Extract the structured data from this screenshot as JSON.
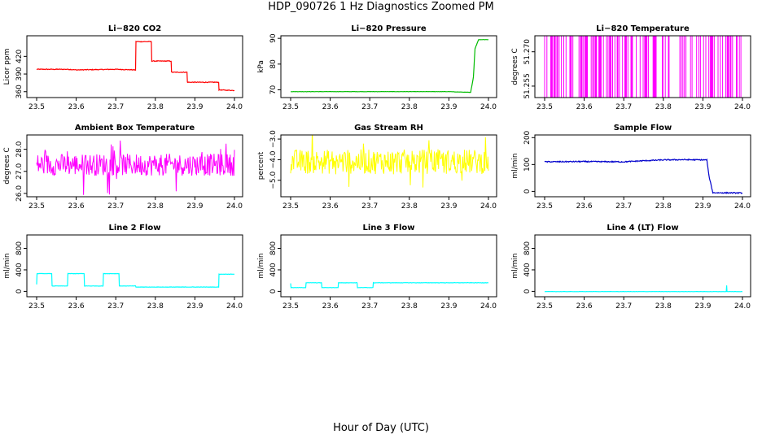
{
  "figure": {
    "title": "HDP_090726  1 Hz Diagnostics Zoomed PM",
    "xlabel": "Hour of Day (UTC)"
  },
  "chart_data": [
    {
      "id": "co2",
      "type": "line",
      "title": "Li−820 CO2",
      "ylabel": "Licor ppm",
      "color": "#ff0000",
      "noise": 0.6,
      "xlim": [
        23.5,
        24.0
      ],
      "ylim": [
        350,
        455
      ],
      "xticks": [
        "23.5",
        "23.6",
        "23.7",
        "23.8",
        "23.9",
        "24.0"
      ],
      "yticks": [
        {
          "v": 360,
          "label": "360"
        },
        {
          "v": 390,
          "label": "390"
        },
        {
          "v": 420,
          "label": "420"
        }
      ],
      "series": [
        {
          "name": "CO2",
          "x": [
            23.5,
            23.58,
            23.6,
            23.7,
            23.75,
            23.751,
            23.79,
            23.791,
            23.84,
            23.841,
            23.88,
            23.881,
            23.96,
            23.961,
            24.0
          ],
          "y": [
            398,
            398,
            397,
            398,
            397,
            445,
            445,
            412,
            412,
            393,
            393,
            376,
            376,
            363,
            362
          ]
        }
      ]
    },
    {
      "id": "pressure",
      "type": "line",
      "title": "Li−820 Pressure",
      "ylabel": "kPa",
      "color": "#00bb00",
      "noise": 0.05,
      "xlim": [
        23.5,
        24.0
      ],
      "ylim": [
        67,
        91
      ],
      "xticks": [
        "23.5",
        "23.6",
        "23.7",
        "23.8",
        "23.9",
        "24.0"
      ],
      "yticks": [
        {
          "v": 70,
          "label": "70"
        },
        {
          "v": 80,
          "label": "80"
        },
        {
          "v": 90,
          "label": "90"
        }
      ],
      "series": [
        {
          "name": "Pressure",
          "x": [
            23.5,
            23.9,
            23.955,
            23.962,
            23.966,
            23.975,
            24.0
          ],
          "y": [
            69.3,
            69.3,
            69.0,
            75,
            86,
            89.5,
            89.5
          ]
        }
      ]
    },
    {
      "id": "licor-temp",
      "type": "spikes",
      "title": "Li−820 Temperature",
      "ylabel": "degrees C",
      "color": "#ff00ff",
      "xlim": [
        23.5,
        24.0
      ],
      "ylim": [
        51.25,
        51.277
      ],
      "xticks": [
        "23.5",
        "23.6",
        "23.7",
        "23.8",
        "23.9",
        "24.0"
      ],
      "yticks": [
        {
          "v": 51.255,
          "label": "51.255"
        },
        {
          "v": 51.27,
          "label": "51.270"
        }
      ],
      "base": 51.25,
      "top": 51.277,
      "density_low": 0.35,
      "density_high": 0.55
    },
    {
      "id": "box-temp",
      "type": "noise",
      "title": "Ambient Box Temperature",
      "ylabel": "degrees C",
      "color": "#ff00ff",
      "xlim": [
        23.5,
        24.0
      ],
      "ylim": [
        25.85,
        28.65
      ],
      "xticks": [
        "23.5",
        "23.6",
        "23.7",
        "23.8",
        "23.9",
        "24.0"
      ],
      "yticks": [
        {
          "v": 26.0,
          "label": "26.0"
        },
        {
          "v": 27.0,
          "label": "27.0"
        },
        {
          "v": 28.0,
          "label": "28.0"
        }
      ],
      "mean": 27.3,
      "amp": 0.5,
      "spike": 0.6
    },
    {
      "id": "rh",
      "type": "noise",
      "title": "Gas Stream RH",
      "ylabel": "percent",
      "color": "#ffff00",
      "xlim": [
        23.5,
        24.0
      ],
      "ylim": [
        -5.8,
        -2.8
      ],
      "xticks": [
        "23.5",
        "23.6",
        "23.7",
        "23.8",
        "23.9",
        "24.0"
      ],
      "yticks": [
        {
          "v": -5.0,
          "label": "−5.0"
        },
        {
          "v": -4.0,
          "label": "−4.0"
        },
        {
          "v": -3.0,
          "label": "−3.0"
        }
      ],
      "mean": -4.1,
      "amp": 0.6,
      "spike": 0.7
    },
    {
      "id": "sample-flow",
      "type": "line",
      "title": "Sample Flow",
      "ylabel": "ml/min",
      "color": "#0000cc",
      "noise": 2,
      "xlim": [
        23.5,
        24.0
      ],
      "ylim": [
        -20,
        210
      ],
      "xticks": [
        "23.5",
        "23.6",
        "23.7",
        "23.8",
        "23.9",
        "24.0"
      ],
      "yticks": [
        {
          "v": 0,
          "label": "0"
        },
        {
          "v": 100,
          "label": "100"
        },
        {
          "v": 200,
          "label": "200"
        }
      ],
      "series": [
        {
          "name": "Sample Flow",
          "x": [
            23.5,
            23.6,
            23.7,
            23.75,
            23.8,
            23.85,
            23.91,
            23.915,
            23.925,
            24.0
          ],
          "y": [
            110,
            111,
            110,
            114,
            117,
            118,
            117,
            60,
            -5,
            -6
          ]
        }
      ]
    },
    {
      "id": "line2",
      "type": "line",
      "title": "Line 2 Flow",
      "ylabel": "ml/min",
      "color": "#00ffff",
      "noise": 3,
      "xlim": [
        23.5,
        24.0
      ],
      "ylim": [
        -100,
        1050
      ],
      "xticks": [
        "23.5",
        "23.6",
        "23.7",
        "23.8",
        "23.9",
        "24.0"
      ],
      "yticks": [
        {
          "v": 0,
          "label": "0"
        },
        {
          "v": 400,
          "label": "400"
        },
        {
          "v": 800,
          "label": "800"
        }
      ],
      "series": [
        {
          "name": "Line 2",
          "x": [
            23.5,
            23.501,
            23.538,
            23.539,
            23.578,
            23.579,
            23.62,
            23.621,
            23.668,
            23.669,
            23.708,
            23.709,
            23.75,
            23.751,
            23.96,
            23.961,
            24.0
          ],
          "y": [
            130,
            330,
            330,
            100,
            100,
            330,
            330,
            100,
            100,
            330,
            330,
            100,
            100,
            80,
            80,
            320,
            320
          ]
        }
      ]
    },
    {
      "id": "line3",
      "type": "line",
      "title": "Line 3 Flow",
      "ylabel": "ml/min",
      "color": "#00ffff",
      "noise": 3,
      "xlim": [
        23.5,
        24.0
      ],
      "ylim": [
        -100,
        1050
      ],
      "xticks": [
        "23.5",
        "23.6",
        "23.7",
        "23.8",
        "23.9",
        "24.0"
      ],
      "yticks": [
        {
          "v": 0,
          "label": "0"
        },
        {
          "v": 400,
          "label": "400"
        },
        {
          "v": 800,
          "label": "800"
        }
      ],
      "series": [
        {
          "name": "Line 3",
          "x": [
            23.5,
            23.501,
            23.538,
            23.539,
            23.578,
            23.579,
            23.62,
            23.621,
            23.668,
            23.669,
            23.708,
            23.709,
            24.0
          ],
          "y": [
            150,
            70,
            70,
            160,
            160,
            70,
            70,
            160,
            160,
            70,
            70,
            160,
            160
          ]
        }
      ]
    },
    {
      "id": "line4",
      "type": "line",
      "title": "Line 4 (LT) Flow",
      "ylabel": "ml/min",
      "color": "#00ffff",
      "noise": 2,
      "xlim": [
        23.5,
        24.0
      ],
      "ylim": [
        -100,
        1050
      ],
      "xticks": [
        "23.5",
        "23.6",
        "23.7",
        "23.8",
        "23.9",
        "24.0"
      ],
      "yticks": [
        {
          "v": 0,
          "label": "0"
        },
        {
          "v": 400,
          "label": "400"
        },
        {
          "v": 800,
          "label": "800"
        }
      ],
      "series": [
        {
          "name": "Line 4",
          "x": [
            23.5,
            23.959,
            23.96,
            23.961,
            24.0
          ],
          "y": [
            -5,
            -5,
            110,
            -5,
            -5
          ]
        }
      ]
    }
  ]
}
